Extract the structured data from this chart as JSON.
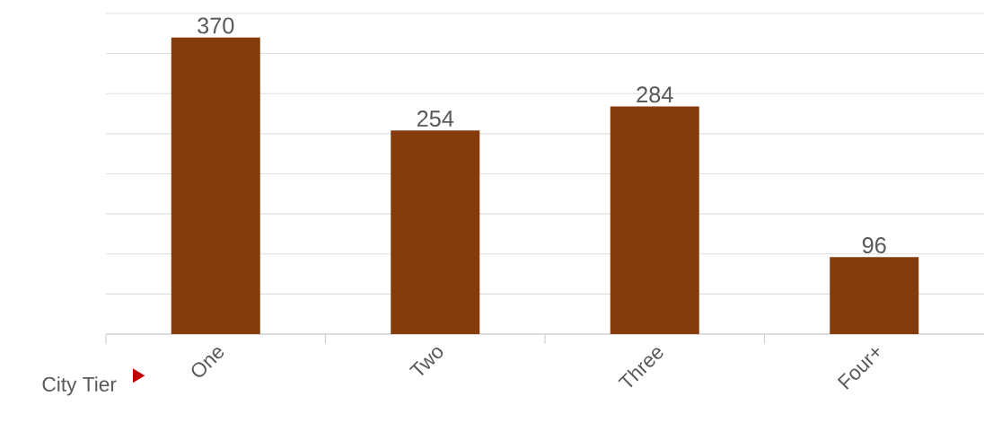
{
  "chart_data": {
    "type": "bar",
    "xlabel": "City Tier",
    "categories": [
      "One",
      "Two",
      "Three",
      "Four+"
    ],
    "values": [
      370,
      254,
      284,
      96
    ],
    "color": "#843c0c",
    "grid": "y",
    "data_labels": true,
    "tick_labels": "x"
  }
}
